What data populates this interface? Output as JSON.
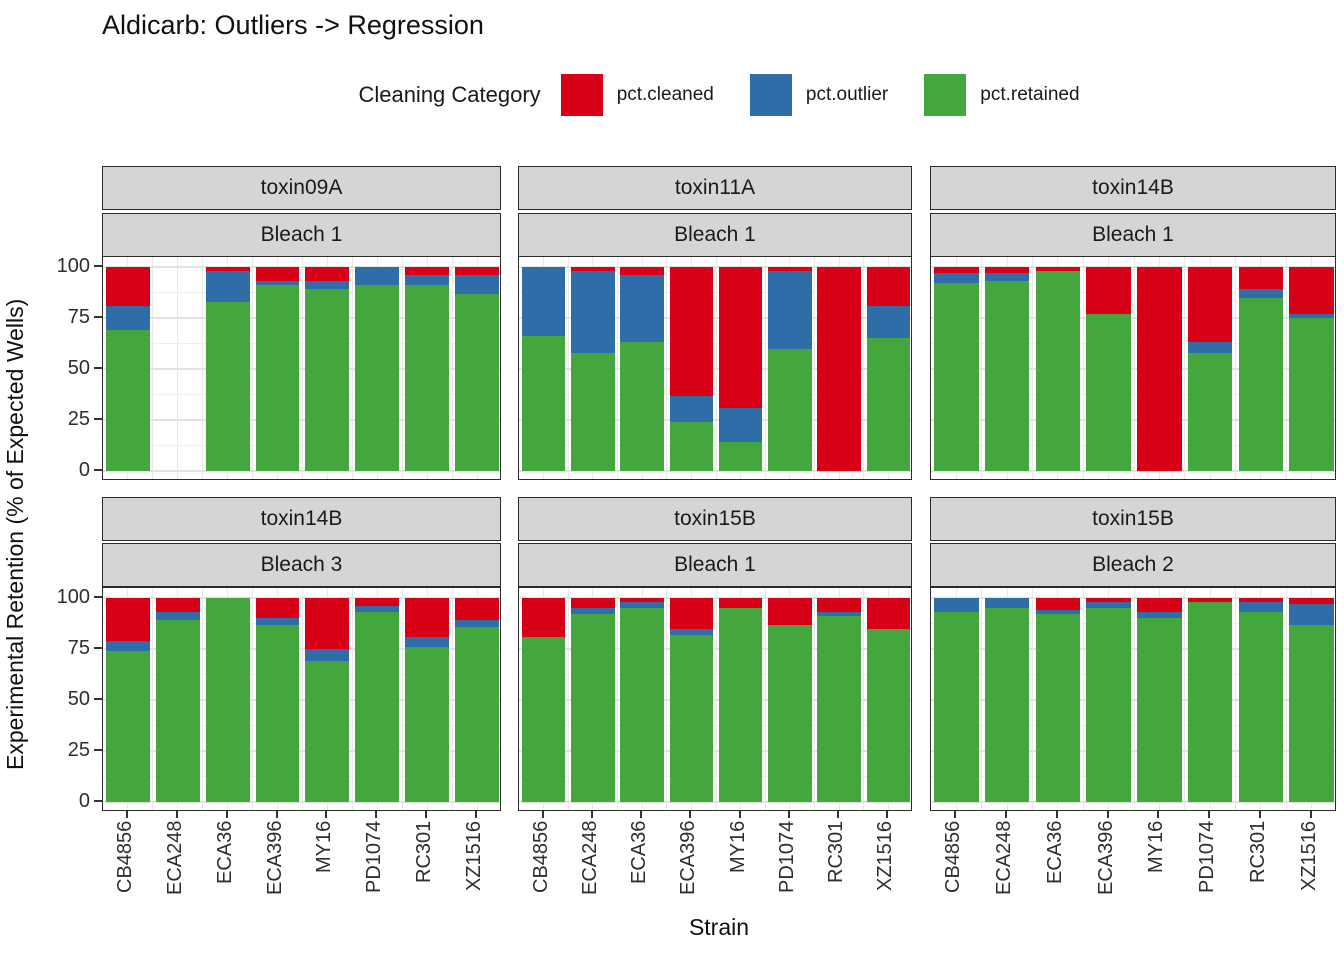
{
  "page_title": "Aldicarb: Outliers -> Regression",
  "legend": {
    "title": "Cleaning Category",
    "items": [
      {
        "label": "pct.cleaned",
        "color": "#d80016"
      },
      {
        "label": "pct.outlier",
        "color": "#2e6da8"
      },
      {
        "label": "pct.retained",
        "color": "#44a73e"
      }
    ]
  },
  "chart_data": {
    "type": "bar",
    "subtype": "stacked-percent-faceted",
    "title": "Aldicarb: Outliers -> Regression",
    "legend_title": "Cleaning Category",
    "legend_position": "top",
    "xlabel": "Strain",
    "ylabel": "Experimental Retention (% of Expected Wells)",
    "y_ticks": [
      0,
      25,
      50,
      75,
      100
    ],
    "ylim": [
      0,
      100
    ],
    "grid": true,
    "categories": [
      "CB4856",
      "ECA248",
      "ECA36",
      "ECA396",
      "MY16",
      "PD1074",
      "RC301",
      "XZ1516"
    ],
    "stack_order_bottom_to_top": [
      "pct.retained",
      "pct.outlier",
      "pct.cleaned"
    ],
    "series_colors": {
      "pct.retained": "#44a73e",
      "pct.outlier": "#2e6da8",
      "pct.cleaned": "#d80016"
    },
    "facets": [
      {
        "row": 0,
        "col": 0,
        "toxin": "toxin09A",
        "bleach": "Bleach 1",
        "values": {
          "pct.retained": [
            69,
            null,
            83,
            91,
            89,
            91,
            91,
            87
          ],
          "pct.outlier": [
            12,
            null,
            15,
            2,
            4,
            9,
            5,
            9
          ],
          "pct.cleaned": [
            19,
            null,
            2,
            7,
            7,
            0,
            4,
            4
          ]
        }
      },
      {
        "row": 0,
        "col": 1,
        "toxin": "toxin11A",
        "bleach": "Bleach 1",
        "values": {
          "pct.retained": [
            66,
            58,
            63,
            24,
            14,
            60,
            0,
            65
          ],
          "pct.outlier": [
            34,
            40,
            33,
            13,
            17,
            38,
            0,
            16
          ],
          "pct.cleaned": [
            0,
            2,
            4,
            63,
            69,
            2,
            100,
            19
          ]
        }
      },
      {
        "row": 0,
        "col": 2,
        "toxin": "toxin14B",
        "bleach": "Bleach 1",
        "values": {
          "pct.retained": [
            92,
            93,
            98,
            77,
            0,
            58,
            85,
            75
          ],
          "pct.outlier": [
            5,
            4,
            0,
            0,
            0,
            5,
            4,
            2
          ],
          "pct.cleaned": [
            3,
            3,
            2,
            23,
            100,
            37,
            11,
            23
          ]
        }
      },
      {
        "row": 1,
        "col": 0,
        "toxin": "toxin14B",
        "bleach": "Bleach 3",
        "values": {
          "pct.retained": [
            74,
            89,
            100,
            87,
            69,
            93,
            76,
            86
          ],
          "pct.outlier": [
            5,
            4,
            0,
            3,
            6,
            3,
            5,
            3
          ],
          "pct.cleaned": [
            21,
            7,
            0,
            10,
            25,
            4,
            19,
            11
          ]
        }
      },
      {
        "row": 1,
        "col": 1,
        "toxin": "toxin15B",
        "bleach": "Bleach 1",
        "values": {
          "pct.retained": [
            81,
            92,
            95,
            82,
            95,
            87,
            91,
            85
          ],
          "pct.outlier": [
            0,
            3,
            3,
            3,
            0,
            0,
            2,
            0
          ],
          "pct.cleaned": [
            19,
            5,
            2,
            15,
            5,
            13,
            7,
            15
          ]
        }
      },
      {
        "row": 1,
        "col": 2,
        "toxin": "toxin15B",
        "bleach": "Bleach 2",
        "values": {
          "pct.retained": [
            93,
            95,
            92,
            95,
            90,
            98,
            93,
            87
          ],
          "pct.outlier": [
            7,
            5,
            2,
            3,
            3,
            0,
            5,
            10
          ],
          "pct.cleaned": [
            0,
            0,
            6,
            2,
            7,
            2,
            2,
            3
          ]
        }
      }
    ]
  }
}
